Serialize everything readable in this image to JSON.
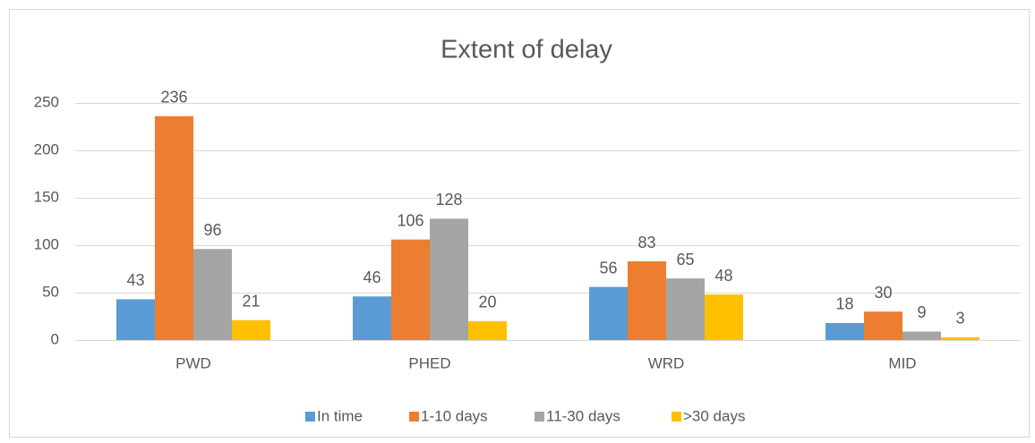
{
  "chart_data": {
    "type": "bar",
    "title": "Extent of delay",
    "categories": [
      "PWD",
      "PHED",
      "WRD",
      "MID"
    ],
    "series": [
      {
        "name": "In time",
        "color": "#5b9bd5",
        "values": [
          43,
          46,
          56,
          18
        ]
      },
      {
        "name": "1-10 days",
        "color": "#ed7d31",
        "values": [
          236,
          106,
          83,
          30
        ]
      },
      {
        "name": "11-30 days",
        "color": "#a5a5a5",
        "values": [
          96,
          128,
          65,
          9
        ]
      },
      {
        "name": ">30 days",
        "color": "#ffc000",
        "values": [
          21,
          20,
          48,
          3
        ]
      }
    ],
    "ylim": [
      0,
      250
    ],
    "yticks": [
      0,
      50,
      100,
      150,
      200,
      250
    ],
    "grid": true,
    "legend": "bottom"
  }
}
